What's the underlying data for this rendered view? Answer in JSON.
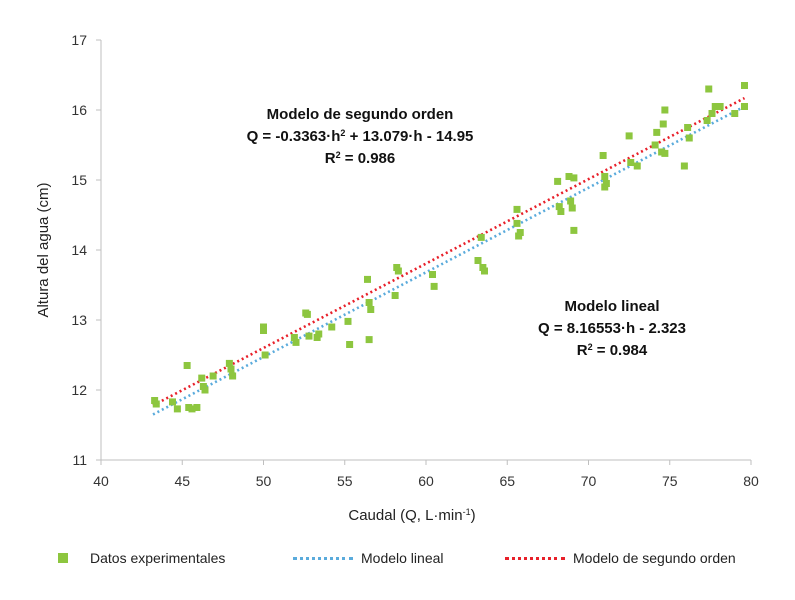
{
  "chart_data": {
    "type": "scatter",
    "xlabel_main": "Caudal (Q, L·min",
    "xlabel_sup": "-1",
    "xlabel_end": ")",
    "ylabel": "Altura del agua (cm)",
    "xlim": [
      40,
      80
    ],
    "ylim": [
      11,
      17
    ],
    "xticks": [
      40,
      45,
      50,
      55,
      60,
      65,
      70,
      75,
      80
    ],
    "yticks": [
      11,
      12,
      13,
      14,
      15,
      16,
      17
    ],
    "series": [
      {
        "name": "Datos experimentales",
        "kind": "points",
        "color": "#8dc63f",
        "points": [
          [
            43.3,
            11.85
          ],
          [
            43.4,
            11.8
          ],
          [
            44.4,
            11.83
          ],
          [
            44.7,
            11.73
          ],
          [
            45.3,
            12.35
          ],
          [
            45.4,
            11.75
          ],
          [
            45.6,
            11.73
          ],
          [
            45.9,
            11.75
          ],
          [
            46.2,
            12.17
          ],
          [
            46.3,
            12.05
          ],
          [
            46.4,
            12.0
          ],
          [
            46.9,
            12.2
          ],
          [
            47.9,
            12.38
          ],
          [
            48.0,
            12.3
          ],
          [
            48.1,
            12.2
          ],
          [
            50.0,
            12.9
          ],
          [
            50.0,
            12.85
          ],
          [
            50.1,
            12.5
          ],
          [
            51.9,
            12.75
          ],
          [
            52.0,
            12.68
          ],
          [
            52.6,
            13.1
          ],
          [
            52.7,
            13.08
          ],
          [
            52.8,
            12.77
          ],
          [
            53.3,
            12.75
          ],
          [
            53.4,
            12.8
          ],
          [
            54.2,
            12.9
          ],
          [
            55.2,
            12.98
          ],
          [
            55.3,
            12.65
          ],
          [
            56.4,
            13.58
          ],
          [
            56.5,
            13.25
          ],
          [
            56.5,
            12.72
          ],
          [
            56.6,
            13.15
          ],
          [
            58.1,
            13.35
          ],
          [
            58.2,
            13.75
          ],
          [
            58.3,
            13.7
          ],
          [
            60.4,
            13.65
          ],
          [
            60.5,
            13.48
          ],
          [
            63.2,
            13.85
          ],
          [
            63.4,
            14.18
          ],
          [
            63.5,
            13.75
          ],
          [
            63.6,
            13.7
          ],
          [
            65.6,
            14.58
          ],
          [
            65.6,
            14.38
          ],
          [
            65.7,
            14.2
          ],
          [
            65.8,
            14.25
          ],
          [
            68.1,
            14.98
          ],
          [
            68.2,
            14.62
          ],
          [
            68.3,
            14.55
          ],
          [
            68.8,
            15.05
          ],
          [
            68.9,
            14.7
          ],
          [
            69.0,
            14.6
          ],
          [
            69.1,
            15.03
          ],
          [
            69.1,
            14.28
          ],
          [
            70.9,
            15.35
          ],
          [
            71.0,
            15.05
          ],
          [
            71.0,
            14.9
          ],
          [
            71.1,
            14.95
          ],
          [
            72.5,
            15.63
          ],
          [
            72.6,
            15.25
          ],
          [
            73.0,
            15.2
          ],
          [
            74.1,
            15.5
          ],
          [
            74.2,
            15.68
          ],
          [
            74.5,
            15.4
          ],
          [
            74.6,
            15.8
          ],
          [
            74.7,
            16.0
          ],
          [
            74.7,
            15.38
          ],
          [
            75.9,
            15.2
          ],
          [
            76.1,
            15.75
          ],
          [
            76.2,
            15.6
          ],
          [
            77.3,
            15.85
          ],
          [
            77.4,
            16.3
          ],
          [
            77.6,
            15.95
          ],
          [
            77.8,
            16.05
          ],
          [
            78.1,
            16.05
          ],
          [
            79.6,
            16.35
          ],
          [
            79.6,
            16.05
          ],
          [
            79.0,
            15.95
          ]
        ]
      },
      {
        "name": "Modelo lineal",
        "kind": "dotted-line",
        "color": "#5aabdc",
        "x": [
          43.2,
          79.6
        ],
        "y": [
          11.65,
          16.05
        ]
      },
      {
        "name": "Modelo de segundo orden",
        "kind": "dotted-line",
        "color": "#e8202a",
        "x": [
          43.2,
          79.6
        ],
        "y": [
          11.78,
          16.17
        ]
      }
    ],
    "annotations": {
      "quadratic": {
        "line1": "Modelo de segundo orden",
        "line2_a": "Q = -0.3363·h",
        "line2_sup": "2",
        "line2_b": " + 13.079·h - 14.95",
        "line3_a": "R",
        "line3_sup": "2",
        "line3_b": " = 0.986"
      },
      "linear": {
        "line1": "Modelo lineal",
        "line2": "Q = 8.16553·h - 2.323",
        "line3_a": "R",
        "line3_sup": "2",
        "line3_b": " = 0.984"
      }
    }
  }
}
